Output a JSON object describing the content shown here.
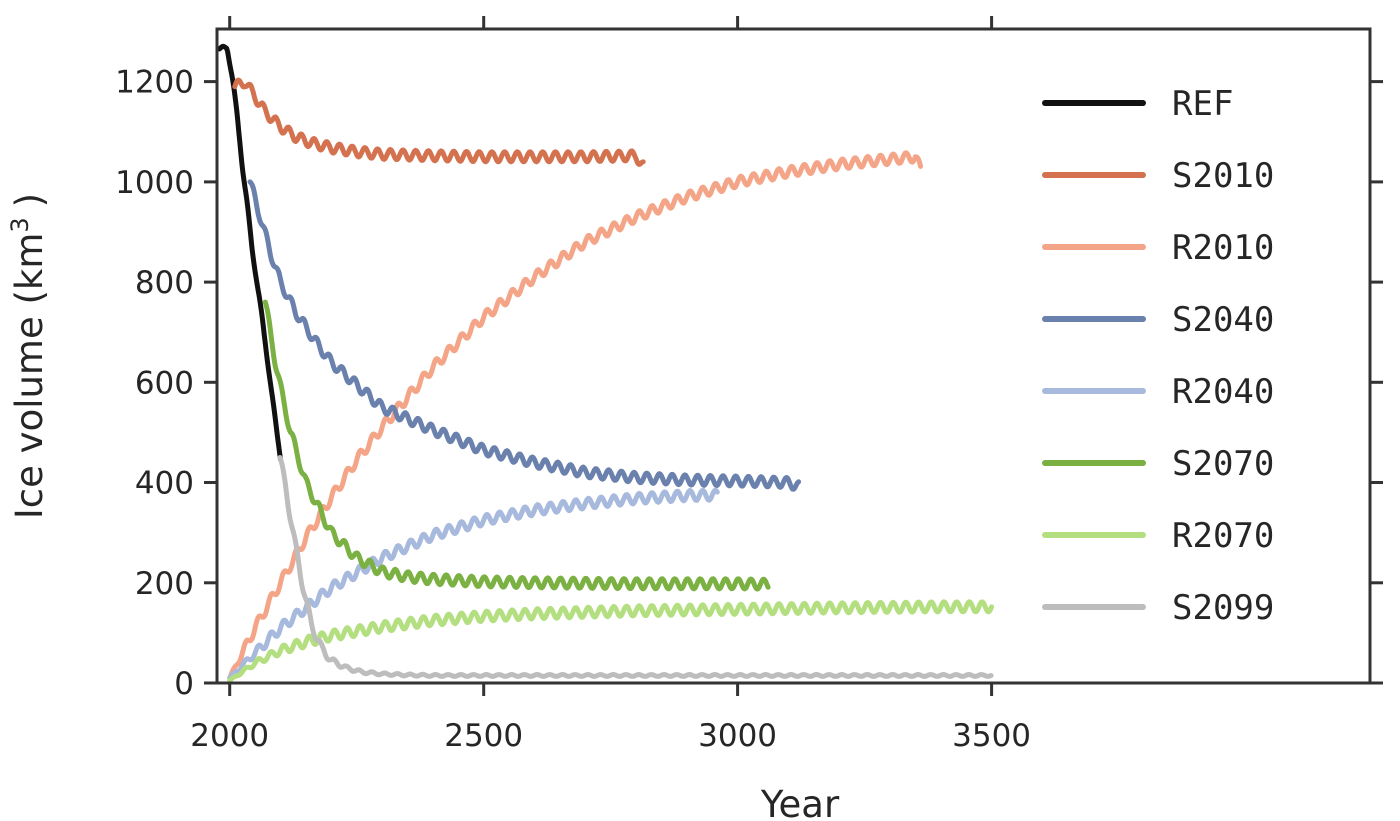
{
  "chart_data": {
    "type": "line",
    "xlabel": "Year",
    "ylabel": "Ice volume (km",
    "ylabel_sup": "3",
    "ylabel_close": ")",
    "xlim": [
      1975,
      4245
    ],
    "ylim": [
      0,
      1305
    ],
    "xticks": [
      2000,
      2500,
      3000,
      3500
    ],
    "yticks": [
      0,
      200,
      400,
      600,
      800,
      1000,
      1200
    ],
    "grid": false,
    "legend_position": "top-right",
    "series": [
      {
        "name": "REF",
        "color": "#111111",
        "x": [
          1980,
          1995,
          2005,
          2015,
          2025,
          2035,
          2045,
          2055,
          2065,
          2075,
          2085,
          2100
        ],
        "y": [
          1265,
          1268,
          1210,
          1130,
          1030,
          950,
          860,
          790,
          720,
          640,
          560,
          450
        ]
      },
      {
        "name": "S2010",
        "color": "#D4724F",
        "x": [
          2010,
          2030,
          2050,
          2070,
          2100,
          2130,
          2160,
          2200,
          2250,
          2300,
          2400,
          2500,
          2600,
          2700,
          2800,
          2815
        ],
        "y": [
          1190,
          1200,
          1170,
          1140,
          1110,
          1090,
          1078,
          1068,
          1060,
          1055,
          1052,
          1050,
          1050,
          1050,
          1052,
          1030
        ]
      },
      {
        "name": "R2010",
        "color": "#F4A588",
        "x": [
          2000,
          2050,
          2100,
          2150,
          2200,
          2250,
          2300,
          2400,
          2500,
          2600,
          2700,
          2800,
          2900,
          3000,
          3100,
          3200,
          3300,
          3350,
          3360
        ],
        "y": [
          10,
          110,
          200,
          290,
          370,
          445,
          510,
          630,
          730,
          810,
          880,
          930,
          970,
          1000,
          1020,
          1035,
          1045,
          1050,
          1025
        ]
      },
      {
        "name": "S2040",
        "color": "#6A80AD",
        "x": [
          2040,
          2060,
          2080,
          2100,
          2130,
          2170,
          2200,
          2250,
          2300,
          2400,
          2500,
          2600,
          2700,
          2800,
          2900,
          3000,
          3100,
          3120
        ],
        "y": [
          1000,
          930,
          860,
          800,
          740,
          680,
          640,
          595,
          550,
          505,
          465,
          440,
          420,
          410,
          405,
          403,
          400,
          392
        ]
      },
      {
        "name": "R2040",
        "color": "#A7B9DC",
        "x": [
          2000,
          2050,
          2100,
          2150,
          2200,
          2250,
          2300,
          2400,
          2500,
          2600,
          2700,
          2800,
          2900,
          2960
        ],
        "y": [
          10,
          60,
          110,
          150,
          190,
          220,
          250,
          295,
          325,
          345,
          358,
          368,
          374,
          375
        ]
      },
      {
        "name": "S2070",
        "color": "#7BB043",
        "x": [
          2070,
          2080,
          2090,
          2100,
          2120,
          2150,
          2200,
          2250,
          2300,
          2350,
          2400,
          2500,
          2600,
          2700,
          2800,
          2900,
          3000,
          3060
        ],
        "y": [
          760,
          700,
          640,
          590,
          500,
          400,
          300,
          250,
          222,
          212,
          207,
          202,
          200,
          199,
          198,
          198,
          198,
          197
        ]
      },
      {
        "name": "R2070",
        "color": "#B4DF80",
        "x": [
          2000,
          2050,
          2100,
          2150,
          2200,
          2300,
          2400,
          2500,
          2600,
          2800,
          3000,
          3200,
          3400,
          3500
        ],
        "y": [
          5,
          40,
          65,
          82,
          95,
          112,
          125,
          133,
          138,
          144,
          147,
          150,
          152,
          152
        ]
      },
      {
        "name": "S2099",
        "color": "#BDBDBD",
        "x": [
          2099,
          2110,
          2120,
          2130,
          2140,
          2150,
          2160,
          2180,
          2200,
          2230,
          2260,
          2300,
          2350,
          2400,
          2500,
          2700,
          3000,
          3500
        ],
        "y": [
          450,
          390,
          330,
          270,
          215,
          165,
          120,
          70,
          45,
          30,
          22,
          18,
          16,
          15,
          15,
          15,
          15,
          15
        ]
      }
    ]
  }
}
